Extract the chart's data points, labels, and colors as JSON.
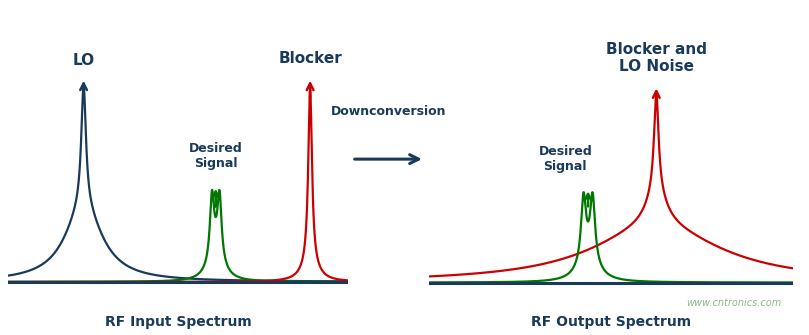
{
  "background_color": "#ffffff",
  "dark_blue": "#1a3a5c",
  "red": "#cc0000",
  "green": "#007700",
  "label_lo": "LO",
  "label_blocker_left": "Blocker",
  "label_desired_left": "Desired\nSignal",
  "label_downconversion": "Downconversion",
  "label_blocker_right": "Blocker and\nLO Noise",
  "label_desired_right": "Desired\nSignal",
  "label_rf_input": "RF Input Spectrum",
  "label_rf_output": "RF Output Spectrum",
  "watermark": "www.cntronics.com"
}
